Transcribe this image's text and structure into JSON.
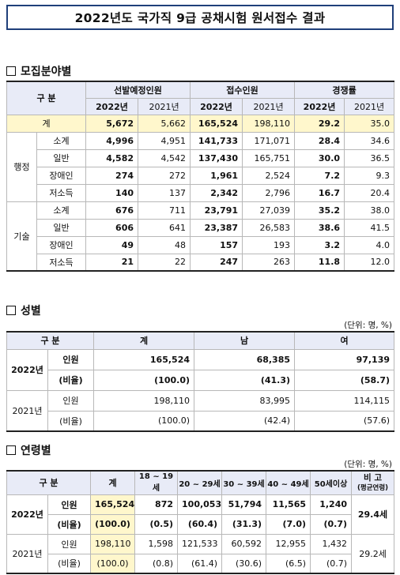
{
  "title": "2022년도 국가직 9급 공채시험 원서접수 결과",
  "sections": {
    "field": "모집분야별",
    "gender": "성별",
    "age": "연령별"
  },
  "unit": "(단위: 명, %)",
  "field_table": {
    "head": {
      "category": "구 분",
      "plan": "선발예정인원",
      "apps": "접수인원",
      "ratio": "경쟁률",
      "y2022": "2022년",
      "y2021": "2021년"
    },
    "total": {
      "label": "계",
      "values": [
        "5,672",
        "5,662",
        "165,524",
        "198,110",
        "29.2",
        "35.0"
      ]
    },
    "groups": [
      {
        "name": "행정",
        "rows": [
          {
            "label": "소계",
            "values": [
              "4,996",
              "4,951",
              "141,733",
              "171,071",
              "28.4",
              "34.6"
            ]
          },
          {
            "label": "일반",
            "values": [
              "4,582",
              "4,542",
              "137,430",
              "165,751",
              "30.0",
              "36.5"
            ]
          },
          {
            "label": "장애인",
            "values": [
              "274",
              "272",
              "1,961",
              "2,524",
              "7.2",
              "9.3"
            ]
          },
          {
            "label": "저소득",
            "values": [
              "140",
              "137",
              "2,342",
              "2,796",
              "16.7",
              "20.4"
            ]
          }
        ]
      },
      {
        "name": "기술",
        "rows": [
          {
            "label": "소계",
            "values": [
              "676",
              "711",
              "23,791",
              "27,039",
              "35.2",
              "38.0"
            ]
          },
          {
            "label": "일반",
            "values": [
              "606",
              "641",
              "23,387",
              "26,583",
              "38.6",
              "41.5"
            ]
          },
          {
            "label": "장애인",
            "values": [
              "49",
              "48",
              "157",
              "193",
              "3.2",
              "4.0"
            ]
          },
          {
            "label": "저소득",
            "values": [
              "21",
              "22",
              "247",
              "263",
              "11.8",
              "12.0"
            ]
          }
        ]
      }
    ]
  },
  "gender_table": {
    "head": {
      "category": "구 분",
      "total": "계",
      "male": "남",
      "female": "여"
    },
    "years": [
      {
        "year": "2022년",
        "rows": [
          {
            "label": "인원",
            "values": [
              "165,524",
              "68,385",
              "97,139"
            ]
          },
          {
            "label": "(비율)",
            "values": [
              "(100.0)",
              "(41.3)",
              "(58.7)"
            ]
          }
        ]
      },
      {
        "year": "2021년",
        "rows": [
          {
            "label": "인원",
            "values": [
              "198,110",
              "83,995",
              "114,115"
            ]
          },
          {
            "label": "(비율)",
            "values": [
              "(100.0)",
              "(42.4)",
              "(57.6)"
            ]
          }
        ]
      }
    ]
  },
  "age_table": {
    "head": {
      "category": "구 분",
      "total": "계",
      "cols": [
        "18 ~ 19세",
        "20 ~ 29세",
        "30 ~ 39세",
        "40 ~ 49세",
        "50세이상"
      ],
      "note": "비 고",
      "note_sub": "(평균연령)"
    },
    "years": [
      {
        "year": "2022년",
        "avg": "29.4세",
        "rows": [
          {
            "label": "인원",
            "values": [
              "165,524",
              "872",
              "100,053",
              "51,794",
              "11,565",
              "1,240"
            ]
          },
          {
            "label": "(비율)",
            "values": [
              "(100.0)",
              "(0.5)",
              "(60.4)",
              "(31.3)",
              "(7.0)",
              "(0.7)"
            ]
          }
        ]
      },
      {
        "year": "2021년",
        "avg": "29.2세",
        "rows": [
          {
            "label": "인원",
            "values": [
              "198,110",
              "1,598",
              "121,533",
              "60,592",
              "12,955",
              "1,432"
            ]
          },
          {
            "label": "(비율)",
            "values": [
              "(100.0)",
              "(0.8)",
              "(61.4)",
              "(30.6)",
              "(6.5)",
              "(0.7)"
            ]
          }
        ]
      }
    ]
  }
}
